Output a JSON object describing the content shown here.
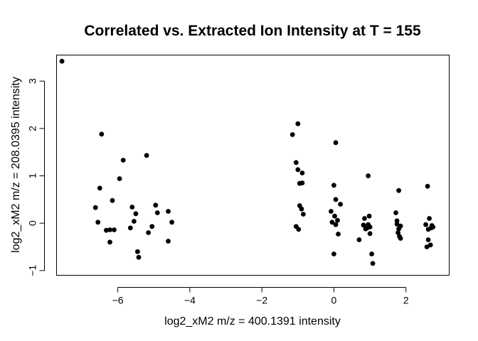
{
  "chart_data": {
    "type": "scatter",
    "title": "Correlated vs. Extracted Ion Intensity at T = 155",
    "xlabel": "log2_xM2 m/z = 400.1391 intensity",
    "ylabel": "log2_xM2 m/z = 208.0395 intensity",
    "xlim": [
      -7.7,
      3.2
    ],
    "ylim": [
      -1.1,
      3.55
    ],
    "xticks": [
      -6,
      -4,
      -2,
      0,
      2
    ],
    "yticks": [
      -1,
      0,
      1,
      2,
      3
    ],
    "marker_color": "#000000",
    "grid": false,
    "legend": "none",
    "points": [
      [
        -7.55,
        3.42
      ],
      [
        -6.62,
        0.33
      ],
      [
        -6.55,
        0.02
      ],
      [
        -6.5,
        0.74
      ],
      [
        -6.45,
        1.88
      ],
      [
        -6.32,
        -0.15
      ],
      [
        -6.22,
        -0.4
      ],
      [
        -6.22,
        -0.14
      ],
      [
        -6.15,
        0.48
      ],
      [
        -6.1,
        -0.14
      ],
      [
        -5.95,
        0.94
      ],
      [
        -5.85,
        1.33
      ],
      [
        -5.65,
        -0.1
      ],
      [
        -5.6,
        0.34
      ],
      [
        -5.55,
        0.04
      ],
      [
        -5.5,
        0.2
      ],
      [
        -5.45,
        -0.6
      ],
      [
        -5.42,
        -0.72
      ],
      [
        -5.2,
        1.43
      ],
      [
        -5.15,
        -0.2
      ],
      [
        -5.05,
        -0.07
      ],
      [
        -4.95,
        0.38
      ],
      [
        -4.9,
        0.22
      ],
      [
        -4.6,
        0.25
      ],
      [
        -4.6,
        -0.38
      ],
      [
        -4.5,
        0.02
      ],
      [
        -1.15,
        1.87
      ],
      [
        -1.05,
        -0.07
      ],
      [
        -1.05,
        1.28
      ],
      [
        -1.0,
        1.13
      ],
      [
        -1.0,
        2.1
      ],
      [
        -0.98,
        -0.13
      ],
      [
        -0.95,
        0.84
      ],
      [
        -0.95,
        0.37
      ],
      [
        -0.9,
        0.3
      ],
      [
        -0.88,
        0.85
      ],
      [
        -0.88,
        1.06
      ],
      [
        -0.85,
        0.19
      ],
      [
        -0.08,
        0.25
      ],
      [
        -0.05,
        0.02
      ],
      [
        0.0,
        0.8
      ],
      [
        0.0,
        -0.65
      ],
      [
        0.02,
        0.15
      ],
      [
        0.05,
        -0.03
      ],
      [
        0.05,
        1.7
      ],
      [
        0.05,
        0.5
      ],
      [
        0.1,
        0.06
      ],
      [
        0.12,
        -0.23
      ],
      [
        0.18,
        0.4
      ],
      [
        0.7,
        -0.35
      ],
      [
        0.82,
        -0.04
      ],
      [
        0.85,
        0.1
      ],
      [
        0.88,
        -0.12
      ],
      [
        0.92,
        -0.1
      ],
      [
        0.95,
        1.0
      ],
      [
        0.95,
        -0.03
      ],
      [
        0.98,
        0.15
      ],
      [
        1.0,
        -0.08
      ],
      [
        1.05,
        -0.65
      ],
      [
        1.08,
        -0.85
      ],
      [
        1.0,
        -0.22
      ],
      [
        1.72,
        0.22
      ],
      [
        1.75,
        0.05
      ],
      [
        1.75,
        -0.02
      ],
      [
        1.78,
        -0.2
      ],
      [
        1.8,
        0.69
      ],
      [
        1.8,
        -0.12
      ],
      [
        1.82,
        -0.28
      ],
      [
        1.85,
        -0.32
      ],
      [
        1.85,
        -0.06
      ],
      [
        2.55,
        -0.03
      ],
      [
        2.58,
        -0.5
      ],
      [
        2.6,
        0.78
      ],
      [
        2.62,
        -0.13
      ],
      [
        2.62,
        -0.35
      ],
      [
        2.65,
        0.1
      ],
      [
        2.68,
        -0.46
      ],
      [
        2.7,
        -0.1
      ],
      [
        2.72,
        -0.05
      ],
      [
        2.75,
        -0.08
      ]
    ]
  }
}
